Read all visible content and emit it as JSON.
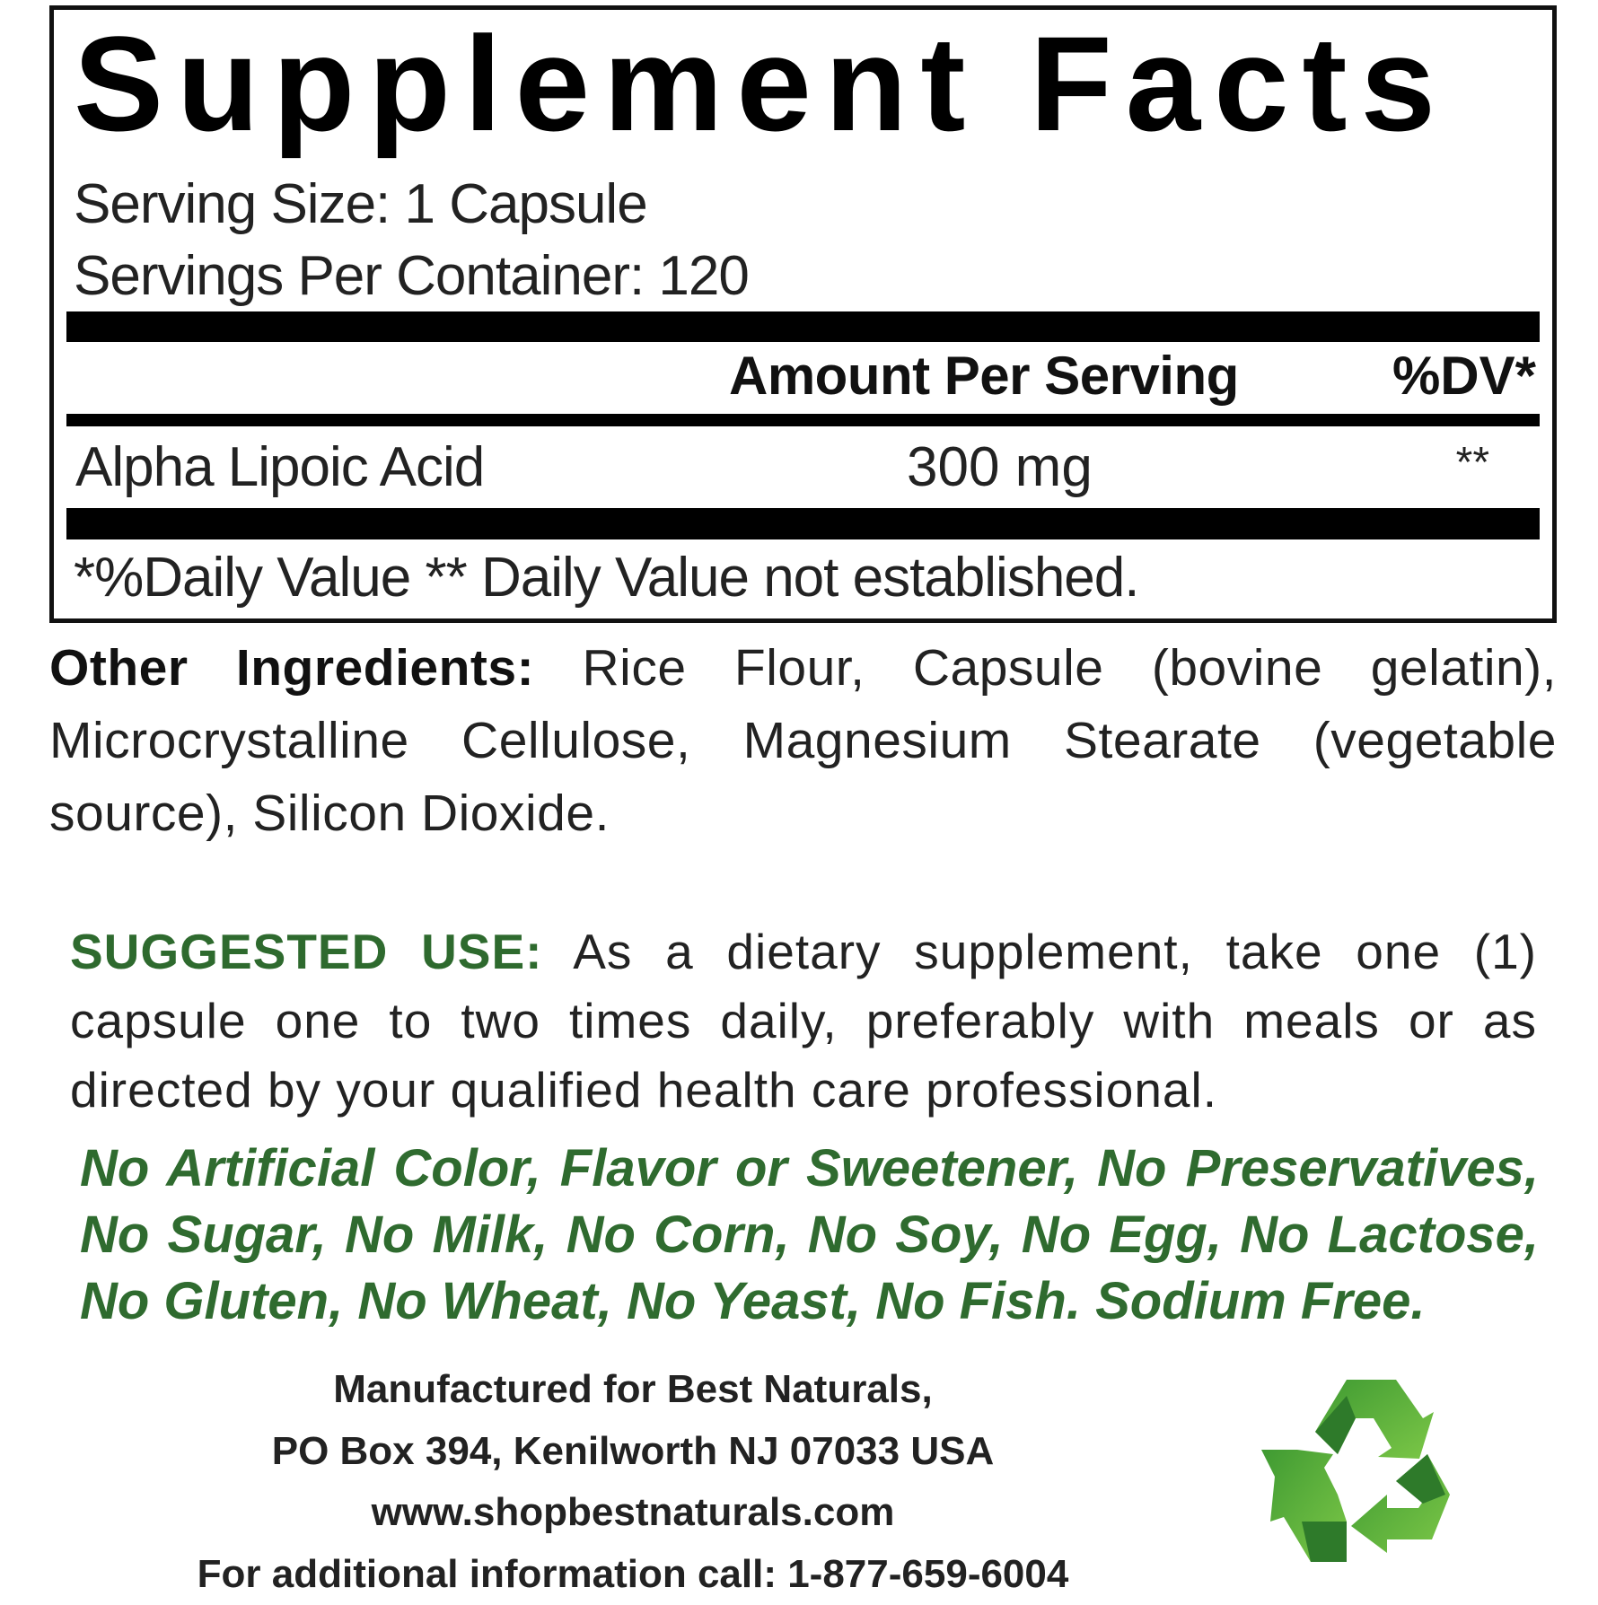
{
  "facts": {
    "title": "Supplement Facts",
    "serving_size": "Serving Size: 1 Capsule",
    "servings_per_container": "Servings Per Container: 120",
    "amount_header": "Amount Per Serving",
    "dv_header": "%DV*",
    "rows": [
      {
        "name": "Alpha Lipoic Acid",
        "amount": "300 mg",
        "dv": "**"
      }
    ],
    "footnote": "*%Daily Value ** Daily Value not established."
  },
  "other_ingredients": {
    "label": "Other Ingredients:",
    "text": "Rice Flour, Capsule (bovine gelatin), Microcrystalline Cellulose, Magnesium Stearate (vegetable source), Silicon Dioxide."
  },
  "suggested_use": {
    "label": "SUGGESTED USE:",
    "text": "As a dietary supplement, take one (1) capsule one to two times daily, preferably with meals or as directed by your qualified health care professional."
  },
  "free_from": "No Artificial Color, Flavor or Sweetener, No Preservatives, No Sugar, No Milk, No Corn, No Soy, No Egg, No Lactose, No Gluten, No Wheat, No Yeast, No Fish. Sodium Free.",
  "manufacturer": {
    "line1": "Manufactured for Best Naturals,",
    "line2": "PO Box 394, Kenilworth NJ 07033 USA",
    "website": "www.shopbestnaturals.com",
    "phone": "For additional information call: 1-877-659-6004"
  },
  "icons": {
    "recycle": "recycle-icon"
  },
  "colors": {
    "green_text": "#2f6b2f",
    "recycle_light": "#6cbf3c",
    "recycle_dark": "#2e7a2a"
  }
}
